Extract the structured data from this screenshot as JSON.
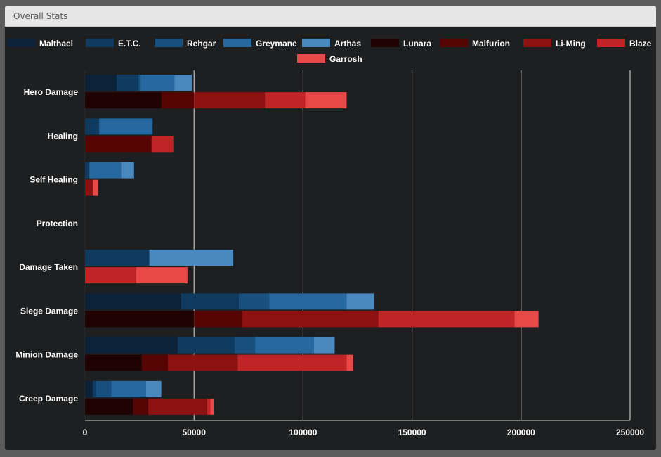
{
  "panel": {
    "title": "Overall Stats"
  },
  "chart_data": {
    "type": "bar",
    "orientation": "horizontal",
    "stacked": true,
    "stack_groups": [
      "blue-team",
      "red-team"
    ],
    "categories": [
      "Hero Damage",
      "Healing",
      "Self Healing",
      "Protection",
      "Damage Taken",
      "Siege Damage",
      "Minion Damage",
      "Creep Damage"
    ],
    "xlim": [
      0,
      250000
    ],
    "xticks": [
      0,
      50000,
      100000,
      150000,
      200000,
      250000
    ],
    "grid": "vertical",
    "legend_position": "top",
    "series": [
      {
        "name": "Malthael",
        "stack": "blue-team",
        "color": "#0b2238",
        "values": [
          14500,
          0,
          0,
          0,
          0,
          44000,
          42500,
          3500
        ]
      },
      {
        "name": "E.T.C.",
        "stack": "blue-team",
        "color": "#0f3b61",
        "values": [
          10000,
          6500,
          2000,
          0,
          29500,
          26500,
          26000,
          1500
        ]
      },
      {
        "name": "Rehgar",
        "stack": "blue-team",
        "color": "#174f7f",
        "values": [
          1000,
          0,
          0,
          0,
          0,
          14000,
          9500,
          7000
        ]
      },
      {
        "name": "Greymane",
        "stack": "blue-team",
        "color": "#2669a0",
        "values": [
          15500,
          24500,
          14500,
          0,
          0,
          35500,
          27000,
          16000
        ]
      },
      {
        "name": "Arthas",
        "stack": "blue-team",
        "color": "#4a88c0",
        "values": [
          8000,
          0,
          6000,
          0,
          38500,
          12500,
          9500,
          7000
        ]
      },
      {
        "name": "Lunara",
        "stack": "red-team",
        "color": "#1f0202",
        "values": [
          35000,
          0,
          0,
          0,
          0,
          50000,
          26000,
          22000
        ]
      },
      {
        "name": "Malfurion",
        "stack": "red-team",
        "color": "#560404",
        "values": [
          15000,
          30500,
          0,
          0,
          0,
          22000,
          12000,
          7000
        ]
      },
      {
        "name": "Li-Ming",
        "stack": "red-team",
        "color": "#8c1111",
        "values": [
          32500,
          0,
          3500,
          0,
          0,
          62500,
          32000,
          27000
        ]
      },
      {
        "name": "Blaze",
        "stack": "red-team",
        "color": "#c02426",
        "values": [
          18500,
          10000,
          0,
          0,
          23500,
          62500,
          50000,
          1500
        ]
      },
      {
        "name": "Garrosh",
        "stack": "red-team",
        "color": "#e84848",
        "values": [
          19000,
          0,
          2500,
          0,
          23500,
          11000,
          3000,
          1500
        ]
      }
    ]
  }
}
